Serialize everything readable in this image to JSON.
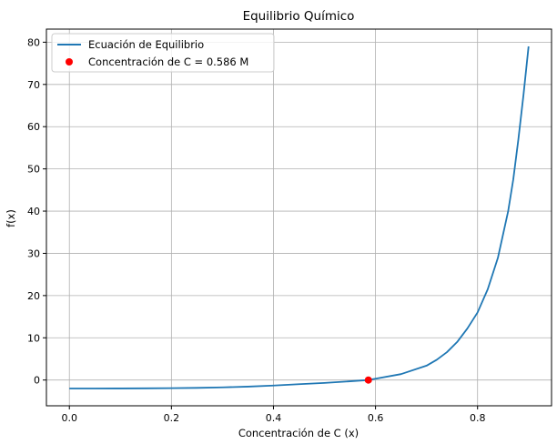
{
  "chart_data": {
    "type": "line",
    "title": "Equilibrio Químico",
    "xlabel": "Concentración de C (x)",
    "ylabel": "f(x)",
    "xlim": [
      -0.045,
      0.945
    ],
    "ylim": [
      -6.1,
      83.1
    ],
    "xticks": [
      0.0,
      0.2,
      0.4,
      0.6,
      0.8
    ],
    "xtick_labels": [
      "0.0",
      "0.2",
      "0.4",
      "0.6",
      "0.8"
    ],
    "yticks": [
      0,
      10,
      20,
      30,
      40,
      50,
      60,
      70,
      80
    ],
    "ytick_labels": [
      "0",
      "10",
      "20",
      "30",
      "40",
      "50",
      "60",
      "70",
      "80"
    ],
    "grid": true,
    "legend_position": "top-left",
    "series": [
      {
        "name": "Ecuación de Equilibrio",
        "kind": "line",
        "color": "#1f77b4",
        "x": [
          0.0,
          0.05,
          0.1,
          0.15,
          0.2,
          0.25,
          0.3,
          0.35,
          0.4,
          0.45,
          0.5,
          0.55,
          0.586,
          0.6,
          0.65,
          0.7,
          0.72,
          0.74,
          0.76,
          0.78,
          0.8,
          0.82,
          0.84,
          0.86,
          0.87,
          0.88,
          0.89,
          0.9
        ],
        "y": [
          -2.0,
          -2.0,
          -1.99,
          -1.97,
          -1.93,
          -1.86,
          -1.74,
          -1.56,
          -1.3,
          -0.98,
          -0.68,
          -0.3,
          0.0,
          0.3,
          1.4,
          3.4,
          4.8,
          6.6,
          9.0,
          12.2,
          16.0,
          21.5,
          29.0,
          40.0,
          47.5,
          57.0,
          67.5,
          79.0
        ]
      },
      {
        "name": "Concentración de C = 0.586 M",
        "kind": "scatter",
        "color": "#ff0000",
        "x": [
          0.586
        ],
        "y": [
          0.0
        ]
      }
    ]
  }
}
